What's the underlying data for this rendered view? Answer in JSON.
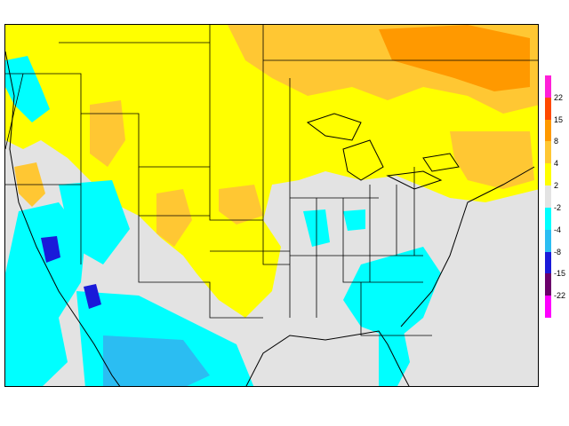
{
  "map": {
    "background_color": "#e3e3e3",
    "boundary_color": "#000000"
  },
  "legend": {
    "bins": [
      {
        "label": "22",
        "color": "#ff1fd8"
      },
      {
        "label": "15",
        "color": "#ff4800"
      },
      {
        "label": "8",
        "color": "#ff9900"
      },
      {
        "label": "4",
        "color": "#ffc733"
      },
      {
        "label": "2",
        "color": "#ffff00"
      },
      {
        "label": "",
        "color": "#e3e3e3"
      },
      {
        "label": "-2",
        "color": "#00ffff"
      },
      {
        "label": "-4",
        "color": "#2bbdf2"
      },
      {
        "label": "-8",
        "color": "#1a1ad9"
      },
      {
        "label": "-15",
        "color": "#6b006b"
      },
      {
        "label": "-22",
        "color": "#ff00ff"
      }
    ],
    "ticks": [
      "22",
      "15",
      "8",
      "4",
      "2",
      "-2",
      "-4",
      "-8",
      "-15",
      "-22"
    ]
  }
}
